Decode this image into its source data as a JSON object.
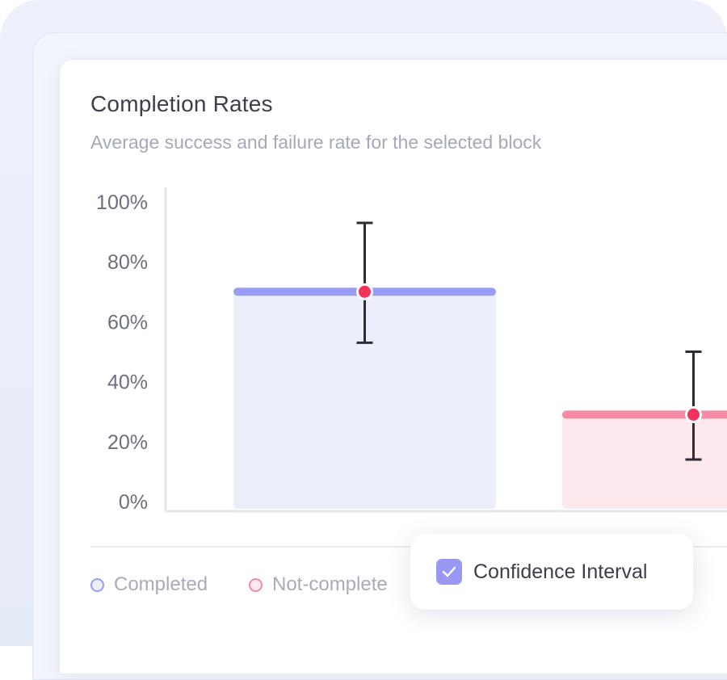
{
  "card": {
    "title": "Completion Rates",
    "subtitle": "Average success and failure rate for the selected block"
  },
  "legend": [
    {
      "label": "Completed",
      "color": "#9b9cf6",
      "fill": "#eceefc"
    },
    {
      "label": "Not-complete",
      "color": "#f58aa4",
      "fill": "#fde8ee"
    }
  ],
  "toggle": {
    "label": "Confidence Interval",
    "checked": true,
    "icon": "checkmark-icon",
    "color": "#9a98f3"
  },
  "chart_data": {
    "type": "bar",
    "categories": [
      "Completed",
      "Not-complete"
    ],
    "series": [
      {
        "values": [
          70,
          29
        ],
        "ci_low": [
          53,
          14
        ],
        "ci_high": [
          93,
          50
        ],
        "colors": [
          "#9b9cf6",
          "#f58aa4"
        ],
        "fills": [
          "#eceefc",
          "#fde8ee"
        ]
      }
    ],
    "y_ticks": [
      "100%",
      "80%",
      "60%",
      "40%",
      "20%",
      "0%"
    ],
    "ylim": [
      0,
      100
    ],
    "marker_color": "#f2335e",
    "axis_color": "#e4e6ec",
    "grid": false
  }
}
